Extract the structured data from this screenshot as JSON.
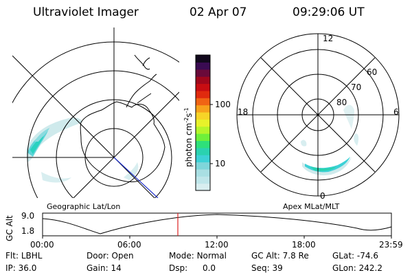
{
  "header": {
    "instrument": "Ultraviolet Imager",
    "date": "02 Apr 07",
    "time": "09:29:06 UT"
  },
  "colorbar": {
    "label": "photon cm",
    "sup1": "-2",
    "s": "s",
    "sup2": "-1",
    "ticks": [
      "100",
      "10"
    ],
    "colors": [
      "#d8eef0",
      "#bfe6ea",
      "#a9dfe3",
      "#7fd6da",
      "#3dd1d6",
      "#2ad2b0",
      "#2ee07a",
      "#6ef03a",
      "#b5f52a",
      "#e8f22a",
      "#f7d427",
      "#f7a21c",
      "#f06414",
      "#e02a0e",
      "#c80d12",
      "#a0071c",
      "#6a0a3a",
      "#3a0b52",
      "#11081c"
    ]
  },
  "left_map": {
    "caption": "Geographic Lat/Lon"
  },
  "right_map": {
    "caption": "Apex MLat/MLT",
    "mlt_labels": [
      "12",
      "18",
      "6",
      "0"
    ],
    "lat_labels": [
      "60",
      "70",
      "80"
    ]
  },
  "altitude_plot": {
    "ylabel": "GC Alt",
    "yticks": [
      "9.0",
      "1.8"
    ],
    "xticks": [
      "00:00",
      "06:00",
      "12:00",
      "18:00",
      "23:59"
    ]
  },
  "info": [
    {
      "label": "Flt:",
      "value": "LBHL"
    },
    {
      "label": "IP:",
      "value": "36.0"
    },
    {
      "label": "Door:",
      "value": "Open"
    },
    {
      "label": "Gain:",
      "value": "14"
    },
    {
      "label": "Mode:",
      "value": "Normal"
    },
    {
      "label": "Dsp:",
      "value": "0.0"
    },
    {
      "label": "GC Alt:",
      "value": "7.8 Re"
    },
    {
      "label": "Seq:",
      "value": "39"
    },
    {
      "label": "GLat:",
      "value": "-74.6"
    },
    {
      "label": "GLon:",
      "value": "242.2"
    }
  ]
}
